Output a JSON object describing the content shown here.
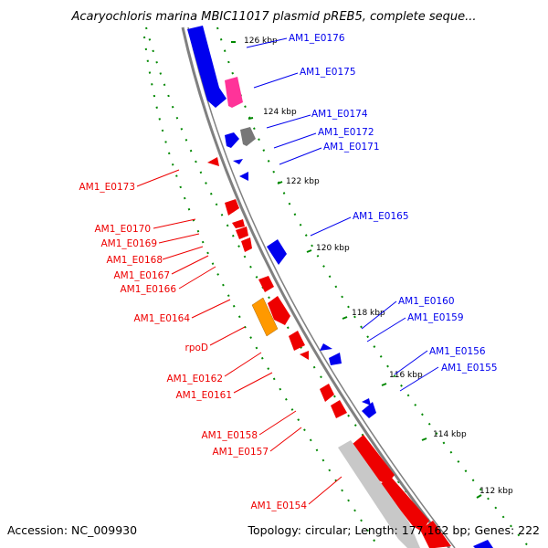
{
  "title": "Acaryochloris marina MBIC11017 plasmid pREB5, complete seque...",
  "accession": "Accession: NC_009930",
  "summary": "Topology: circular; Length: 177,162 bp; Genes: 222",
  "ticks": [
    "126 kbp",
    "124 kbp",
    "122 kbp",
    "120 kbp",
    "118 kbp",
    "116 kbp",
    "114 kbp",
    "112 kbp"
  ],
  "colors": {
    "forward": "#0000ee",
    "reverse": "#ee0000",
    "pink": "#ff3399",
    "gray": "#777777",
    "orange": "#ff9900",
    "light_gray": "#c8c8c8",
    "backbone": "#808080",
    "dots": "#008800"
  },
  "right_labels": [
    "AM1_E0176",
    "AM1_E0175",
    "AM1_E0174",
    "AM1_E0172",
    "AM1_E0171",
    "AM1_E0165",
    "AM1_E0160",
    "AM1_E0159",
    "AM1_E0156",
    "AM1_E0155"
  ],
  "left_labels": [
    "AM1_E0173",
    "AM1_E0170",
    "AM1_E0169",
    "AM1_E0168",
    "AM1_E0167",
    "AM1_E0166",
    "AM1_E0164",
    "rpoD",
    "AM1_E0162",
    "AM1_E0161",
    "AM1_E0158",
    "AM1_E0157",
    "AM1_E0154"
  ]
}
